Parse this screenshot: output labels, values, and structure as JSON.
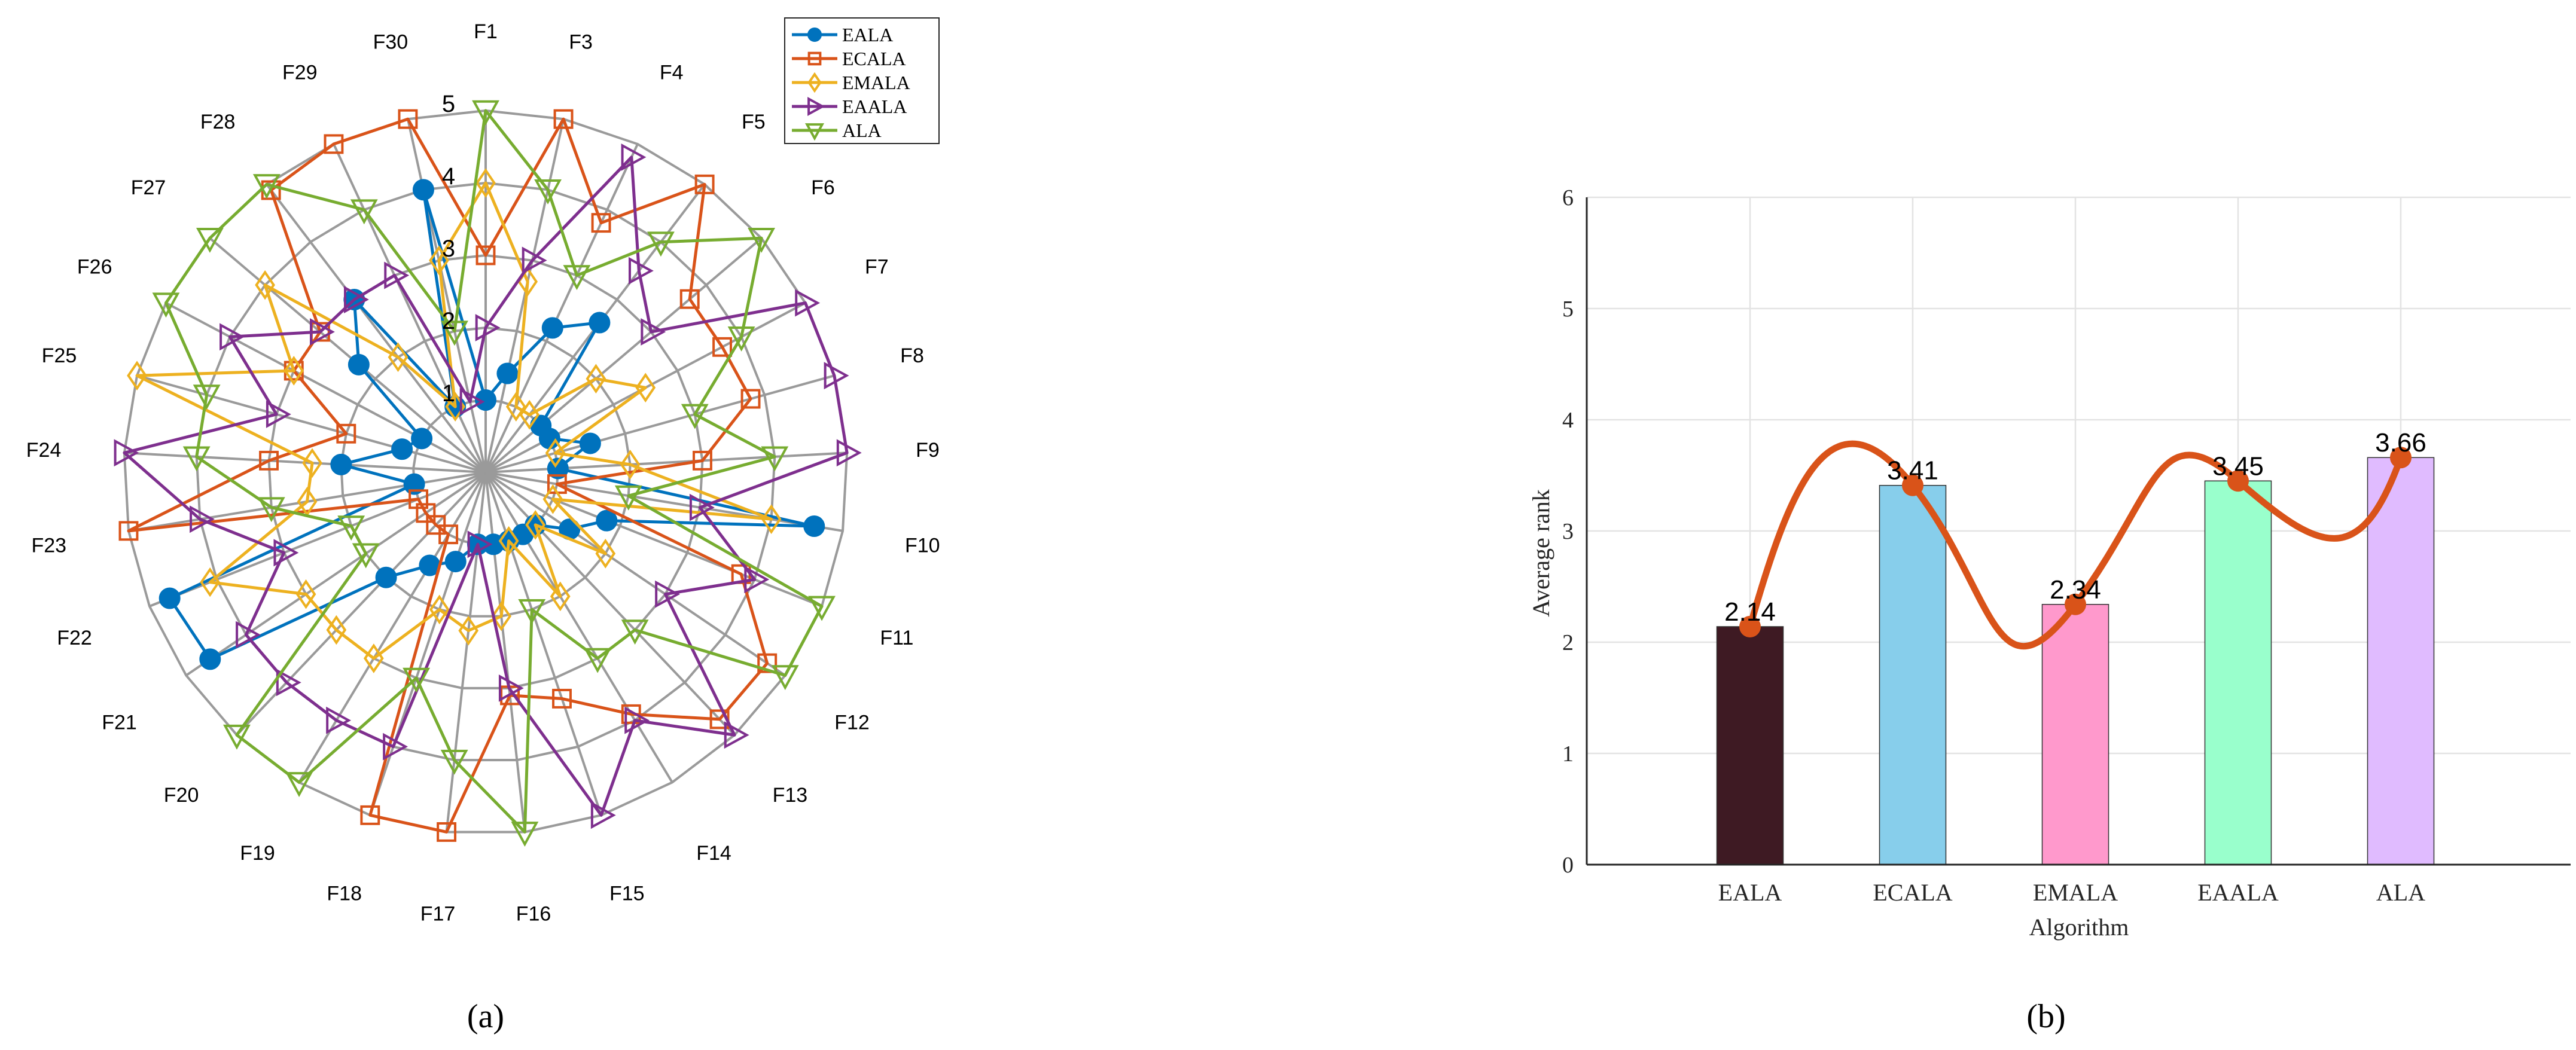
{
  "chart_data": [
    {
      "type": "radar",
      "panel_label": "(a)",
      "axes": [
        "F1",
        "F3",
        "F4",
        "F5",
        "F6",
        "F7",
        "F8",
        "F9",
        "F10",
        "F11",
        "F12",
        "F13",
        "F14",
        "F15",
        "F16",
        "F17",
        "F18",
        "F19",
        "F20",
        "F21",
        "F22",
        "F23",
        "F24",
        "F25",
        "F26",
        "F27",
        "F28",
        "F29",
        "F30"
      ],
      "rlim": [
        0,
        5
      ],
      "ring_ticks": [
        1,
        2,
        3,
        4,
        5
      ],
      "ring_tick_labels": [
        "1",
        "2",
        "3",
        "4",
        "5"
      ],
      "grid": true,
      "legend": "top-right",
      "series": [
        {
          "name": "EALA",
          "color": "#0072BD",
          "marker": "circle",
          "values": [
            1.0,
            1.4,
            2.2,
            2.6,
            1.0,
            1.0,
            1.5,
            1.0,
            4.6,
            1.8,
            1.4,
            1.0,
            1.0,
            1.0,
            1.0,
            1.0,
            1.3,
            1.5,
            2.0,
            4.6,
            4.7,
            1.0,
            2.0,
            1.2,
            1.0,
            2.3,
            3.0,
            1.0,
            4.0
          ]
        },
        {
          "name": "ECALA",
          "color": "#D95319",
          "marker": "square",
          "values": [
            3.0,
            5.0,
            3.8,
            5.0,
            3.7,
            3.7,
            3.8,
            3.0,
            1.0,
            3.8,
            4.7,
            4.7,
            3.9,
            3.3,
            3.1,
            5.0,
            5.0,
            1.0,
            1.0,
            1.0,
            1.0,
            5.0,
            3.0,
            2.0,
            3.0,
            3.0,
            4.9,
            5.0,
            5.0
          ]
        },
        {
          "name": "EMALA",
          "color": "#EDB120",
          "marker": "diamond",
          "values": [
            4.0,
            2.7,
            1.0,
            1.0,
            2.0,
            2.5,
            1.0,
            2.0,
            4.0,
            1.0,
            2.0,
            1.0,
            2.0,
            1.0,
            2.0,
            2.2,
            2.0,
            3.0,
            3.0,
            3.0,
            4.1,
            2.5,
            2.4,
            5.0,
            3.0,
            4.0,
            2.0,
            1.0,
            3.0
          ]
        },
        {
          "name": "EAALA",
          "color": "#7E2F8E",
          "marker": "triangle-right",
          "values": [
            2.0,
            3.0,
            4.8,
            3.5,
            3.0,
            5.0,
            5.0,
            5.0,
            3.0,
            4.0,
            3.0,
            5.0,
            4.0,
            5.0,
            3.0,
            1.0,
            4.0,
            4.0,
            4.0,
            4.0,
            3.0,
            4.0,
            5.0,
            3.0,
            4.0,
            3.0,
            3.0,
            3.0,
            1.0
          ]
        },
        {
          "name": "ALA",
          "color": "#77AC30",
          "marker": "triangle-down",
          "values": [
            5.0,
            4.0,
            3.0,
            4.0,
            5.0,
            4.0,
            3.0,
            4.0,
            2.0,
            5.0,
            5.0,
            3.0,
            3.0,
            2.0,
            5.0,
            4.0,
            3.0,
            5.0,
            5.0,
            2.0,
            2.0,
            3.0,
            4.0,
            4.0,
            5.0,
            5.0,
            5.0,
            4.0,
            2.0
          ]
        }
      ]
    },
    {
      "type": "bar",
      "panel_label": "(b)",
      "categories": [
        "EALA",
        "ECALA",
        "EMALA",
        "EAALA",
        "ALA"
      ],
      "values": [
        2.14,
        3.41,
        2.34,
        3.45,
        3.66
      ],
      "value_labels": [
        "2.14",
        "3.41",
        "2.34",
        "3.45",
        "3.66"
      ],
      "bar_colors": [
        "#3E1A23",
        "#87CEEB",
        "#FF99CC",
        "#99FFCC",
        "#E0BBFF"
      ],
      "xlabel": "Algorithm",
      "ylabel": "Average rank",
      "ylim": [
        0,
        6
      ],
      "yticks": [
        "0",
        "1",
        "2",
        "3",
        "4",
        "5",
        "6"
      ],
      "grid": true,
      "overlay_line": {
        "type": "smooth-line",
        "color": "#D95319",
        "values": [
          2.14,
          3.41,
          2.34,
          3.45,
          3.66
        ]
      }
    }
  ]
}
